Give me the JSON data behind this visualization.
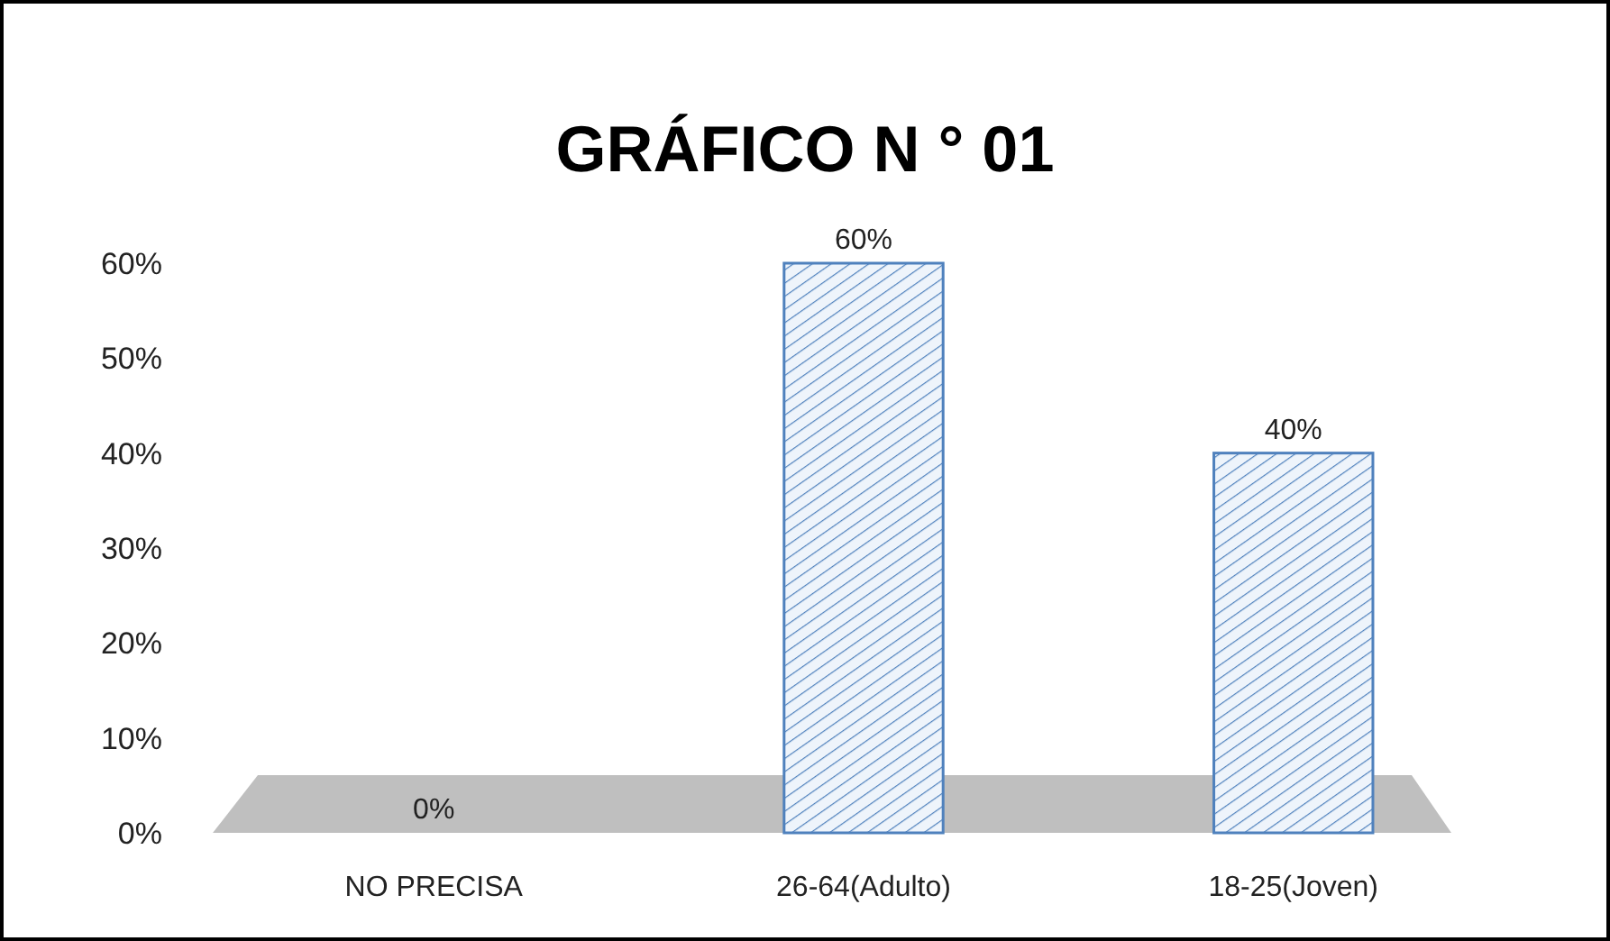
{
  "chart_data": {
    "type": "bar",
    "title": "GRÁFICO N ° 01",
    "categories": [
      "NO PRECISA",
      "26-64(Adulto)",
      "18-25(Joven)"
    ],
    "values": [
      0,
      60,
      40
    ],
    "color": "#4f81bd",
    "value_labels": [
      "0%",
      "60%",
      "40%"
    ],
    "ylim": [
      0,
      60
    ],
    "yticks": [
      {
        "value": 0,
        "label": "0%"
      },
      {
        "value": 10,
        "label": "10%"
      },
      {
        "value": 20,
        "label": "20%"
      },
      {
        "value": 30,
        "label": "30%"
      },
      {
        "value": 40,
        "label": "40%"
      },
      {
        "value": 50,
        "label": "50%"
      },
      {
        "value": 60,
        "label": "60%"
      }
    ],
    "grid": false
  }
}
